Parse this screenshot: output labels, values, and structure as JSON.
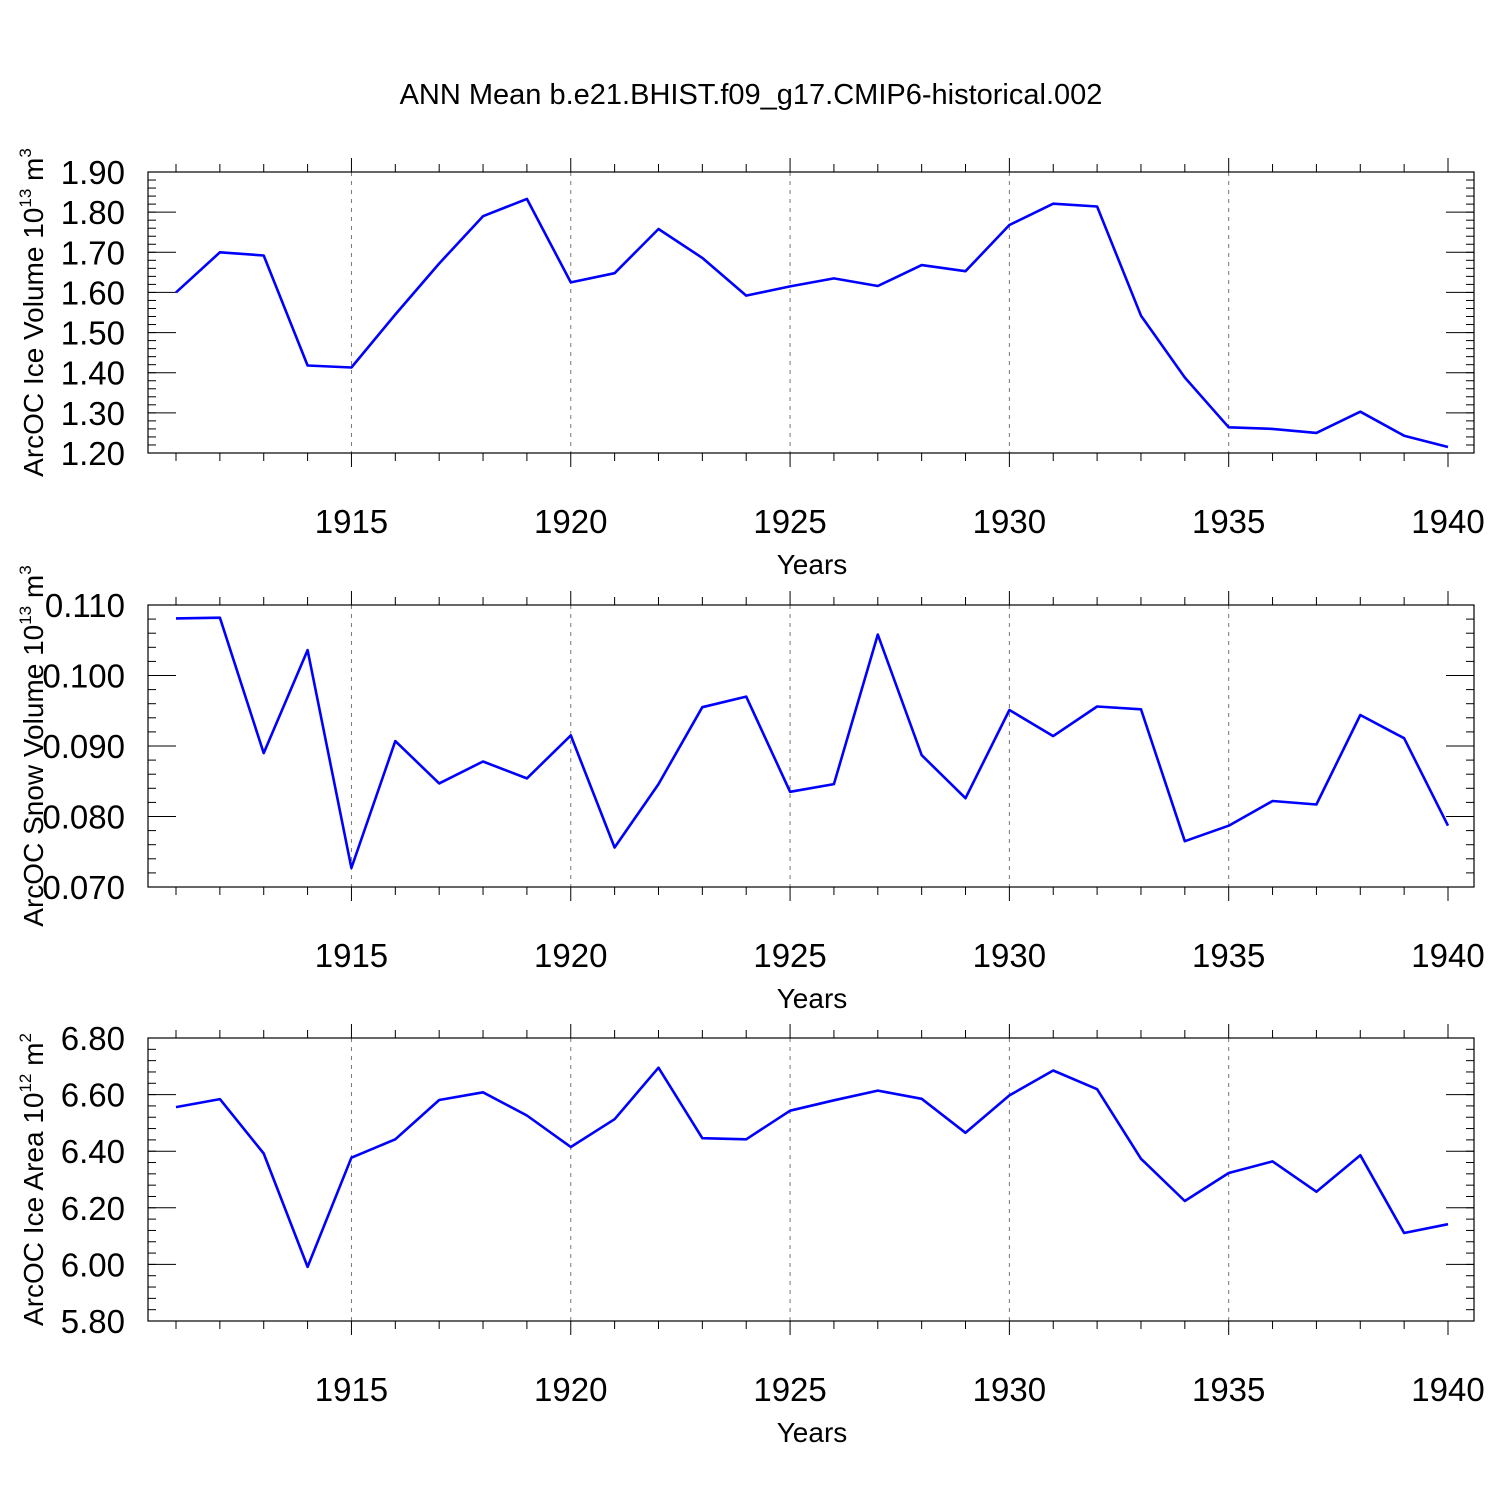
{
  "figure": {
    "title": "ANN Mean b.e21.BHIST.f09_g17.CMIP6-historical.002",
    "line_color": "#0000ff"
  },
  "chart_data": [
    {
      "type": "line",
      "title": "",
      "ylabel_main": "ArcOC Ice Volume 10",
      "ylabel_exp": "13",
      "ylabel_unit": " m",
      "ylabel_unit_exp": "3",
      "xlabel": "Years",
      "xlim": [
        1911,
        1940
      ],
      "ylim": [
        1.2,
        1.9
      ],
      "yticks": [
        1.2,
        1.3,
        1.4,
        1.5,
        1.6,
        1.7,
        1.8,
        1.9
      ],
      "ytick_labels": [
        "1.20",
        "1.30",
        "1.40",
        "1.50",
        "1.60",
        "1.70",
        "1.80",
        "1.90"
      ],
      "yminor_step": 0.02,
      "xticks": [
        1915,
        1920,
        1925,
        1930,
        1935,
        1940
      ],
      "xtick_labels": [
        "1915",
        "1920",
        "1925",
        "1930",
        "1935",
        "1940"
      ],
      "grid": "vertical-dashed",
      "x": [
        1911,
        1912,
        1913,
        1914,
        1915,
        1916,
        1917,
        1918,
        1919,
        1920,
        1921,
        1922,
        1923,
        1924,
        1925,
        1926,
        1927,
        1928,
        1929,
        1930,
        1931,
        1932,
        1933,
        1934,
        1935,
        1936,
        1937,
        1938,
        1939,
        1940
      ],
      "values": [
        1.6,
        1.7,
        1.692,
        1.418,
        1.413,
        1.545,
        1.672,
        1.79,
        1.833,
        1.625,
        1.648,
        1.758,
        1.686,
        1.592,
        1.615,
        1.635,
        1.616,
        1.668,
        1.653,
        1.768,
        1.821,
        1.814,
        1.542,
        1.388,
        1.264,
        1.26,
        1.25,
        1.303,
        1.243,
        1.215
      ]
    },
    {
      "type": "line",
      "title": "",
      "ylabel_main": "ArcOC Snow Volume 10",
      "ylabel_exp": "13",
      "ylabel_unit": " m",
      "ylabel_unit_exp": "3",
      "xlabel": "Years",
      "xlim": [
        1911,
        1940
      ],
      "ylim": [
        0.07,
        0.11
      ],
      "yticks": [
        0.07,
        0.08,
        0.09,
        0.1,
        0.11
      ],
      "ytick_labels": [
        "0.070",
        "0.080",
        "0.090",
        "0.100",
        "0.110"
      ],
      "yminor_step": 0.002,
      "xticks": [
        1915,
        1920,
        1925,
        1930,
        1935,
        1940
      ],
      "xtick_labels": [
        "1915",
        "1920",
        "1925",
        "1930",
        "1935",
        "1940"
      ],
      "grid": "vertical-dashed",
      "x": [
        1911,
        1912,
        1913,
        1914,
        1915,
        1916,
        1917,
        1918,
        1919,
        1920,
        1921,
        1922,
        1923,
        1924,
        1925,
        1926,
        1927,
        1928,
        1929,
        1930,
        1931,
        1932,
        1933,
        1934,
        1935,
        1936,
        1937,
        1938,
        1939,
        1940
      ],
      "values": [
        0.1081,
        0.1082,
        0.089,
        0.1036,
        0.0727,
        0.0907,
        0.0847,
        0.0878,
        0.0854,
        0.0915,
        0.0756,
        0.0846,
        0.0955,
        0.097,
        0.0835,
        0.0846,
        0.1058,
        0.0887,
        0.0826,
        0.0951,
        0.0914,
        0.0956,
        0.0952,
        0.0765,
        0.0787,
        0.0822,
        0.0817,
        0.0944,
        0.0911,
        0.0787
      ]
    },
    {
      "type": "line",
      "title": "",
      "ylabel_main": "ArcOC Ice Area 10",
      "ylabel_exp": "12",
      "ylabel_unit": " m",
      "ylabel_unit_exp": "2",
      "xlabel": "Years",
      "xlim": [
        1911,
        1940
      ],
      "ylim": [
        5.8,
        6.8
      ],
      "yticks": [
        5.8,
        6.0,
        6.2,
        6.4,
        6.6,
        6.8
      ],
      "ytick_labels": [
        "5.80",
        "6.00",
        "6.20",
        "6.40",
        "6.60",
        "6.80"
      ],
      "yminor_step": 0.04,
      "xticks": [
        1915,
        1920,
        1925,
        1930,
        1935,
        1940
      ],
      "xtick_labels": [
        "1915",
        "1920",
        "1925",
        "1930",
        "1935",
        "1940"
      ],
      "grid": "vertical-dashed",
      "x": [
        1911,
        1912,
        1913,
        1914,
        1915,
        1916,
        1917,
        1918,
        1919,
        1920,
        1921,
        1922,
        1923,
        1924,
        1925,
        1926,
        1927,
        1928,
        1929,
        1930,
        1931,
        1932,
        1933,
        1934,
        1935,
        1936,
        1937,
        1938,
        1939,
        1940
      ],
      "values": [
        6.556,
        6.584,
        6.392,
        5.991,
        6.377,
        6.442,
        6.581,
        6.608,
        6.526,
        6.415,
        6.513,
        6.695,
        6.446,
        6.442,
        6.543,
        6.58,
        6.614,
        6.585,
        6.465,
        6.597,
        6.685,
        6.619,
        6.373,
        6.224,
        6.323,
        6.364,
        6.257,
        6.386,
        6.111,
        6.142
      ]
    }
  ]
}
